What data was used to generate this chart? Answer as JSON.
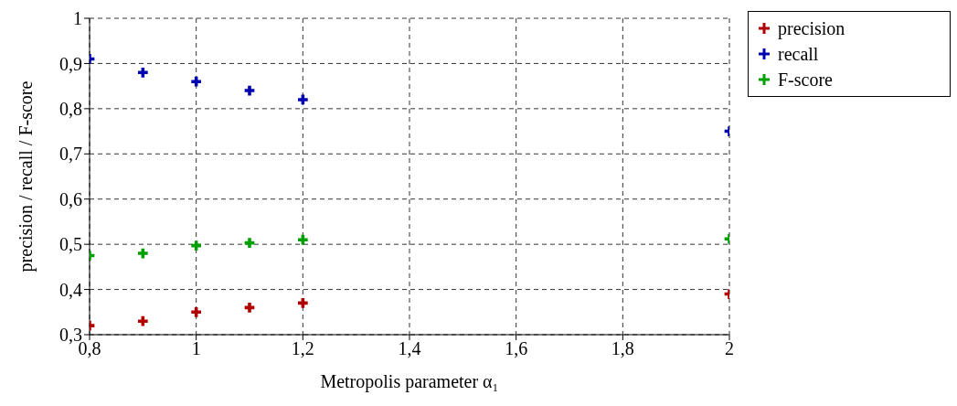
{
  "chart_data": {
    "type": "scatter",
    "xlabel": "Metropolis parameter α₁",
    "ylabel": "precision / recall / F-score",
    "x": [
      0.8,
      0.9,
      1.0,
      1.1,
      1.2,
      2.0
    ],
    "series": [
      {
        "name": "precision",
        "color": "#b00000",
        "values": [
          0.32,
          0.33,
          0.35,
          0.36,
          0.37,
          0.39
        ]
      },
      {
        "name": "recall",
        "color": "#0000b0",
        "values": [
          0.91,
          0.88,
          0.86,
          0.84,
          0.82,
          0.75
        ]
      },
      {
        "name": "F-score",
        "color": "#00a000",
        "values": [
          0.475,
          0.48,
          0.497,
          0.503,
          0.51,
          0.512
        ]
      }
    ],
    "xlim": [
      0.8,
      2.0
    ],
    "xticks": [
      {
        "value": 0.8,
        "label": "0,8"
      },
      {
        "value": 1,
        "label": "1"
      },
      {
        "value": 1.2,
        "label": "1,2"
      },
      {
        "value": 1.4,
        "label": "1,4"
      },
      {
        "value": 1.6,
        "label": "1,6"
      },
      {
        "value": 1.8,
        "label": "1,8"
      },
      {
        "value": 2,
        "label": "2"
      }
    ],
    "ylim": [
      0.3,
      1.0
    ],
    "yticks": [
      {
        "value": 0.3,
        "label": "0,3"
      },
      {
        "value": 0.4,
        "label": "0,4"
      },
      {
        "value": 0.5,
        "label": "0,5"
      },
      {
        "value": 0.6,
        "label": "0,6"
      },
      {
        "value": 0.7,
        "label": "0,7"
      },
      {
        "value": 0.8,
        "label": "0,8"
      },
      {
        "value": 0.9,
        "label": "0,9"
      },
      {
        "value": 1,
        "label": "1"
      }
    ],
    "grid": true,
    "line_style": "dashed",
    "marker": "cross",
    "legend": "top right"
  }
}
